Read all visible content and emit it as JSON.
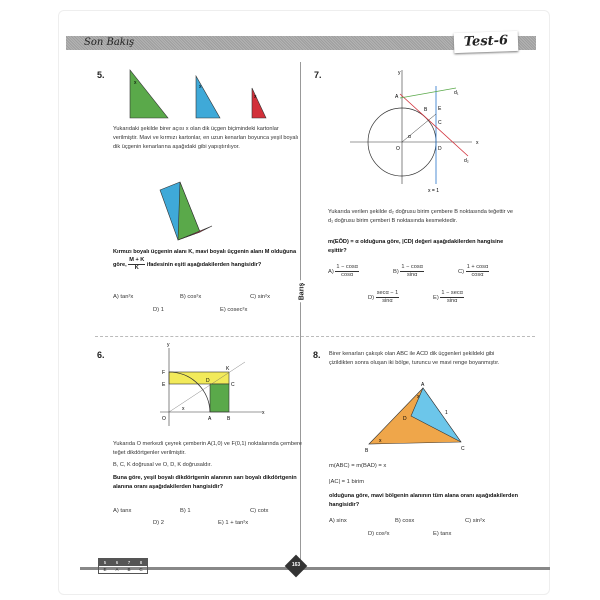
{
  "header": {
    "title": "Son Bakış",
    "test": "Test-6"
  },
  "side_label": "Barış",
  "q5": {
    "num": "5.",
    "text": "Yukarıdaki şekilde birer açısı x olan dik üçgen biçimindeki kartonlar verilmiştir. Mavi ve kırmızı kartonlar, en uzun kenarları boyunca yeşil boyalı dik üçgenin kenarlarına aşağıdaki gibi yapıştırılıyor.",
    "question1": "Kırmızı boyalı üçgenin alanı K, mavi boyalı üçgenin alanı M olduğuna göre,",
    "frac_num": "M + K",
    "frac_den": "K",
    "question2": "ifadesinin eşiti aşağıdakilerden hangisidir?",
    "options": [
      "A) tan²x",
      "B) cos²x",
      "C) sin²x",
      "D) 1",
      "E) cosec²x"
    ],
    "label_x": "x"
  },
  "q6": {
    "num": "6.",
    "text1": "Yukarıda O merkezli çeyrek çemberin A(1,0) ve F(0,1) noktalarında çembere teğet dikdörtgenler verilmiştir.",
    "text2": "B, C, K doğrusal ve O, D, K doğrusaldır.",
    "question": "Buna göre, yeşil boyalı dikdörtgenin alanının sarı boyalı dikdörtgenin alanına oranı aşağıdakilerden hangisidir?",
    "options": [
      "A) tanx",
      "B) 1",
      "C) cotx",
      "D) 2",
      "E) 1 + tan²x"
    ],
    "labels": {
      "y": "y",
      "x": "x",
      "F": "F",
      "E": "E",
      "K": "K",
      "D": "D",
      "C": "C",
      "O": "O",
      "A": "A",
      "B": "B",
      "ang": "x"
    }
  },
  "q7": {
    "num": "7.",
    "text": "Yukarıda verilen şekilde d₂ doğrusu birim çembere B noktasında teğettir ve d₁ doğrusu birim çemberi B noktasında kesmektedir.",
    "question": "m(EÔD) = α olduğuna göre, |CD| değeri aşağıdakilerden hangisine eşittir?",
    "options": [
      {
        "l": "A)",
        "n": "1 − cosα",
        "d": "cosα"
      },
      {
        "l": "B)",
        "n": "1 − cosα",
        "d": "sinα"
      },
      {
        "l": "C)",
        "n": "1 + cosα",
        "d": "cosα"
      },
      {
        "l": "D)",
        "n": "secα − 1",
        "d": "sinα"
      },
      {
        "l": "E)",
        "n": "1 − secα",
        "d": "sinα"
      }
    ],
    "labels": {
      "y": "y",
      "x": "x",
      "A": "A",
      "B": "B",
      "E": "E",
      "C": "C",
      "O": "O",
      "D": "D",
      "d1": "d₁",
      "d2": "d₂",
      "a": "α",
      "x1": "x = 1"
    }
  },
  "q8": {
    "num": "8.",
    "text": "Birer kenarları çakışık olan ABC ile ACD dik üçgenleri şekildeki gibi çizildikten sonra oluşan iki bölge, turuncu ve mavi renge boyanmıştır.",
    "given1": "m(ABC) = m(BAD) = x",
    "given2": "|AC| = 1 birim",
    "question": "olduğuna göre, mavi bölgenin alanının tüm alana oranı aşağıdakilerden hangisidir?",
    "options": [
      "A) sinx",
      "B) cosx",
      "C) sin²x",
      "D) cos²x",
      "E) tanx"
    ],
    "labels": {
      "A": "A",
      "B": "B",
      "C": "C",
      "D": "D",
      "one": "1",
      "x1": "x",
      "x2": "x"
    }
  },
  "footer": {
    "key_q": [
      "5",
      "6",
      "7",
      "8"
    ],
    "key_a": [
      "E",
      "A",
      "B",
      "C"
    ],
    "page": "163"
  },
  "colors": {
    "green": "#5aa94a",
    "blue": "#3fa9d8",
    "red": "#d2303a",
    "yellow": "#f2ea5a",
    "orange": "#efa64a",
    "lightblue": "#6cc6ea"
  }
}
